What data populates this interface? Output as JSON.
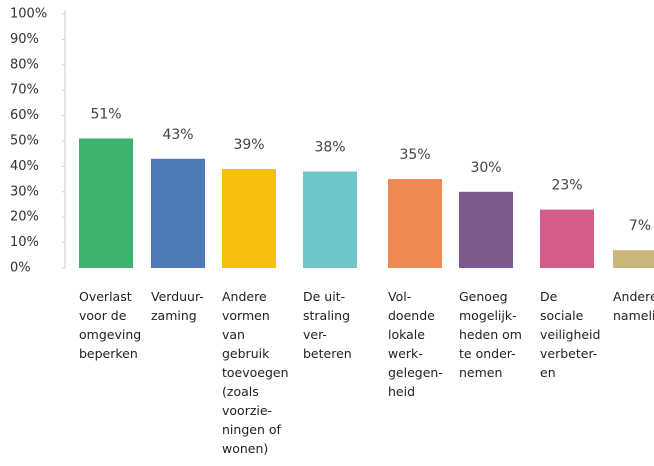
{
  "chart_data": {
    "type": "bar",
    "categories": [
      "Overlast\nvoor de\nomgeving\nbeperken",
      "Verduur-\nzaming",
      "Andere\nvormen\nvan\ngebruik\ntoevoegen\n(zoals\nvoorzie-\nningen of\nwonen)",
      "De uit-\nstraling\nver-\nbeteren",
      "Vol-\ndoende\nlokale\nwerk-\ngelegen-\nheid",
      "Genoeg\nmogelijk-\nheden om\nte onder-\nnemen",
      "De\nsociale\nveiligheid\nverbeter-\nen",
      "Andere\nnamelijk"
    ],
    "values": [
      51,
      43,
      39,
      38,
      35,
      30,
      23,
      7
    ],
    "value_labels": [
      "51%",
      "43%",
      "39%",
      "38%",
      "35%",
      "30%",
      "23%",
      "7%"
    ],
    "colors": [
      "#3db26f",
      "#4f7ab9",
      "#f6be0d",
      "#6ec6cc",
      "#f08a54",
      "#7c5b8f",
      "#d55c8a",
      "#c8b67a"
    ],
    "ylim": [
      0,
      100
    ],
    "yticks": [
      {
        "value": 0,
        "label": "0%"
      },
      {
        "value": 10,
        "label": "10%"
      },
      {
        "value": 20,
        "label": "20%"
      },
      {
        "value": 30,
        "label": "30%"
      },
      {
        "value": 40,
        "label": "40%"
      },
      {
        "value": 50,
        "label": "50%"
      },
      {
        "value": 60,
        "label": "60%"
      },
      {
        "value": 70,
        "label": "70%"
      },
      {
        "value": 80,
        "label": "80%"
      },
      {
        "value": 90,
        "label": "90%"
      },
      {
        "value": 100,
        "label": "100%"
      }
    ]
  }
}
